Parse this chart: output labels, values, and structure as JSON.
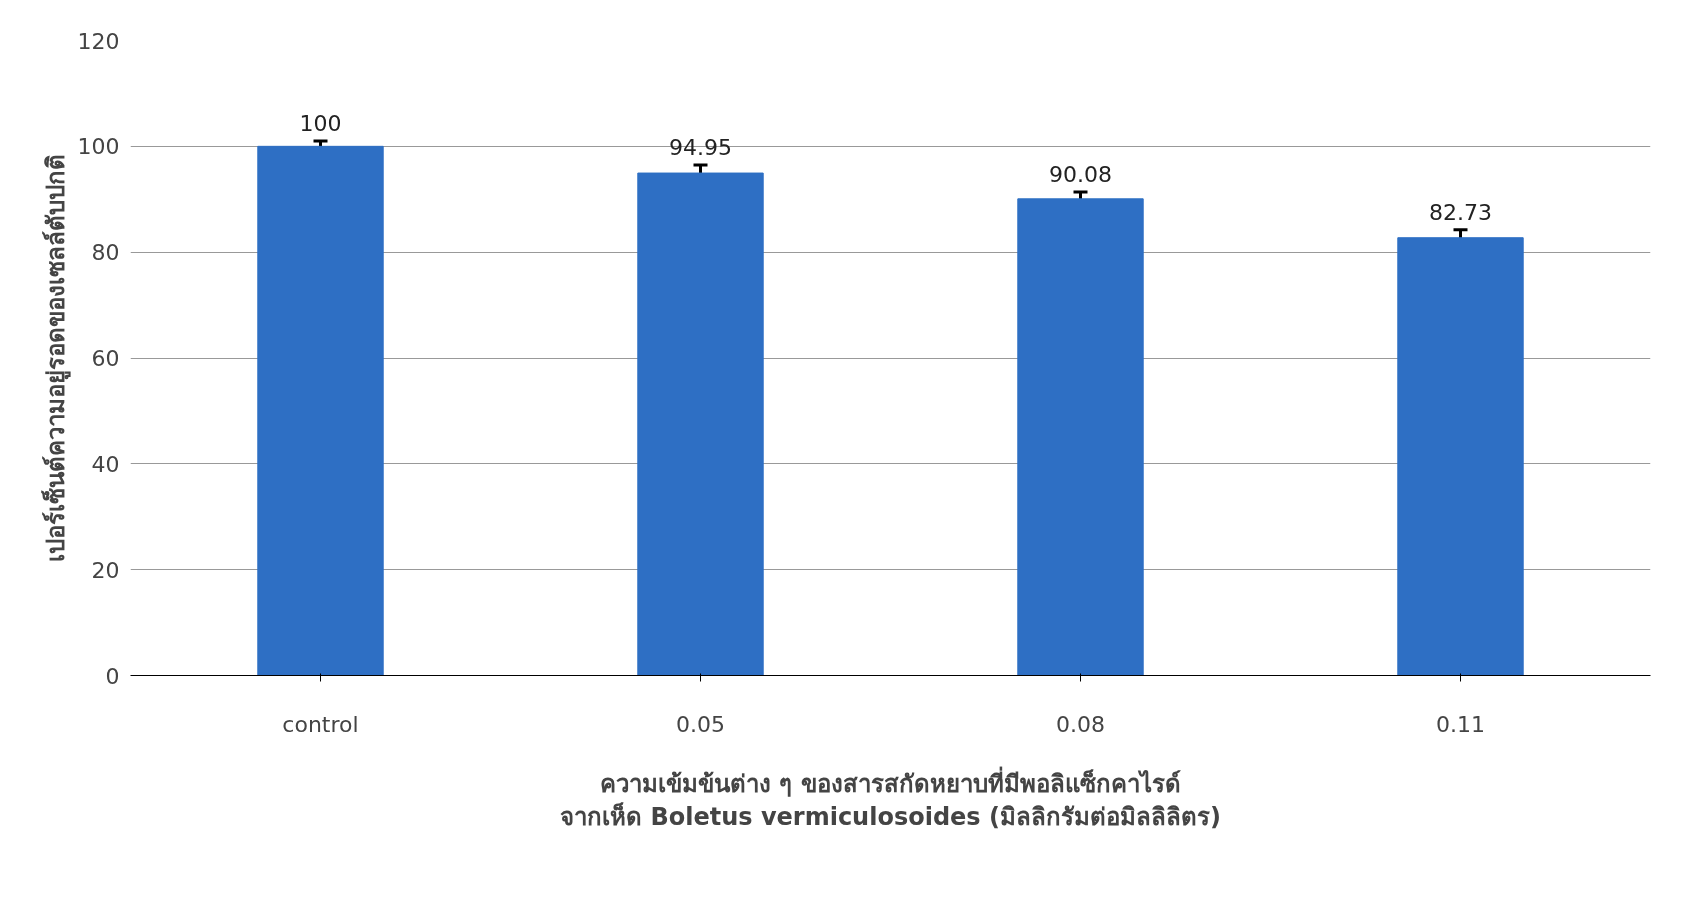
{
  "chart_data": {
    "type": "bar",
    "xlabel": "ความเข้มข้นต่าง ๆ ของสารสกัดหยาบที่มีพอลิแซ็กคาไรด์\nจากเห็ด Boletus vermiculosoides (มิลลิกรัมต่อมิลลิลิตร)",
    "ylabel": "เปอร์เซ็นต์ความอยู่รอดของเซลล์ตับปกติ",
    "categories": [
      "control",
      "0.05",
      "0.08",
      "0.11"
    ],
    "values": [
      100,
      94.95,
      90.08,
      82.73
    ],
    "errors": [
      1,
      1.5,
      1.3,
      1.5
    ],
    "color": "#2e6fc4",
    "data_labels": true,
    "ylim": [
      0,
      120
    ],
    "yticks": [
      0,
      20,
      40,
      60,
      80,
      100,
      120
    ],
    "grid": "y"
  }
}
